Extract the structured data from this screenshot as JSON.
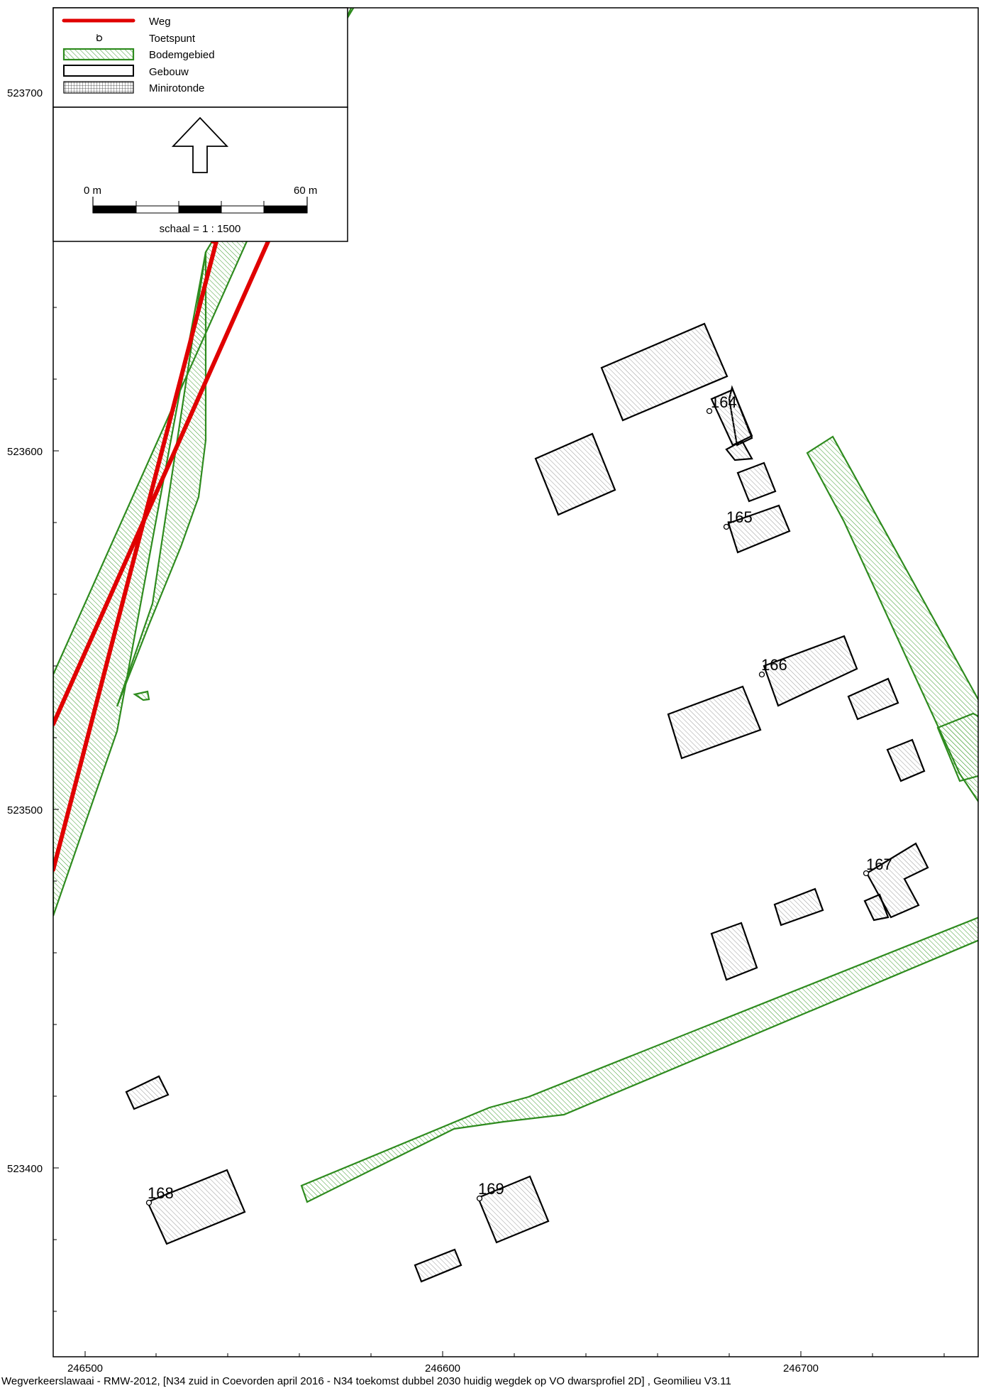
{
  "legend": {
    "items": [
      {
        "label": "Weg",
        "icon": "road-line-icon"
      },
      {
        "label": "Toetspunt",
        "icon": "assessment-point-icon"
      },
      {
        "label": "Bodemgebied",
        "icon": "ground-area-icon"
      },
      {
        "label": "Gebouw",
        "icon": "building-icon"
      },
      {
        "label": "Minirotonde",
        "icon": "mini-roundabout-icon"
      }
    ]
  },
  "scalebar": {
    "start_label": "0 m",
    "end_label": "60 m",
    "scale_text": "schaal = 1 : 1500",
    "north_icon": "north-arrow-icon"
  },
  "axes": {
    "x_ticks": [
      "246500",
      "246600",
      "246700"
    ],
    "y_ticks": [
      "523700",
      "523600",
      "523500",
      "523400"
    ]
  },
  "points": {
    "p164": "164",
    "p165": "165",
    "p166": "166",
    "p167": "167",
    "p168": "168",
    "p169": "169"
  },
  "colors": {
    "road": "#e00000",
    "ground_area": "#2e8b1e",
    "building": "#000000"
  },
  "footer": "Wegverkeerslawaai - RMW-2012, [N34 zuid in Coevorden april 2016 - N34 toekomst dubbel 2030 huidig wegdek op VO dwarsprofiel 2D] , Geomilieu V3.11"
}
